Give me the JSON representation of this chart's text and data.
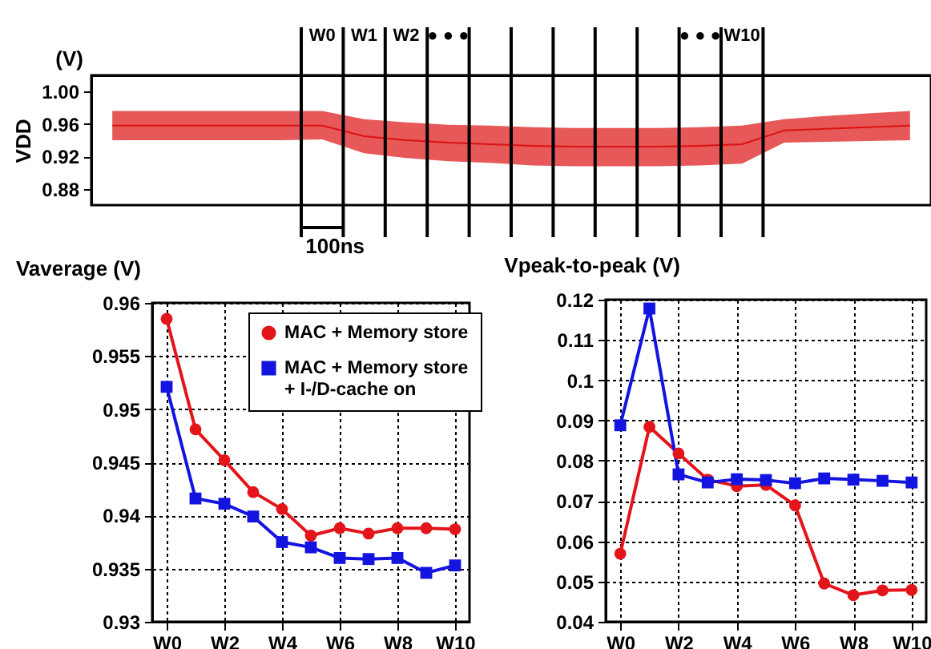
{
  "chart_data": [
    {
      "type": "line",
      "ylabel": "VDD",
      "annotations": [
        "(V)",
        "100ns"
      ],
      "categories": [
        null,
        null,
        null,
        null,
        null,
        "W0",
        "W1",
        "W2",
        "● ● ●",
        null,
        null,
        null,
        null,
        null,
        "● ● ●",
        "W10",
        null,
        null,
        null,
        null
      ],
      "series": [
        {
          "color": "#dd1111",
          "values": [
            0.958,
            0.958,
            0.958,
            0.958,
            0.958,
            0.958,
            0.945,
            0.94,
            0.937,
            0.935,
            0.933,
            0.932,
            0.932,
            0.932,
            0.933,
            0.935,
            0.952,
            0.954,
            0.956,
            0.958
          ],
          "lower": [
            0.94,
            0.94,
            0.94,
            0.94,
            0.94,
            0.941,
            0.924,
            0.918,
            0.914,
            0.912,
            0.909,
            0.908,
            0.908,
            0.908,
            0.909,
            0.911,
            0.937,
            0.938,
            0.939,
            0.94
          ],
          "upper": [
            0.976,
            0.976,
            0.976,
            0.976,
            0.976,
            0.976,
            0.966,
            0.962,
            0.959,
            0.958,
            0.956,
            0.955,
            0.955,
            0.955,
            0.956,
            0.958,
            0.966,
            0.97,
            0.973,
            0.976
          ]
        }
      ],
      "ylim": [
        0.86,
        1.02
      ],
      "yticks": [
        0.88,
        0.92,
        0.96,
        {
          "value": 1,
          "label": "1.00"
        }
      ],
      "grid": false
    },
    {
      "type": "line",
      "title": "Vaverage (V)",
      "categories": [
        "W0",
        null,
        "W2",
        null,
        "W4",
        null,
        "W6",
        null,
        "W8",
        null,
        "W10"
      ],
      "series": [
        {
          "name": "MAC + Memory store",
          "color": "#e3141a",
          "marker": "circle",
          "values": [
            0.9585,
            0.9481,
            0.9452,
            0.9422,
            0.9406,
            0.9381,
            0.9388,
            0.9383,
            0.9388,
            0.9388,
            0.9387
          ]
        },
        {
          "name": "MAC + Memory store + I-/D-cache on",
          "color": "#1414e0",
          "marker": "square",
          "values": [
            0.9521,
            0.9416,
            0.9411,
            0.9399,
            0.9375,
            0.937,
            0.936,
            0.9359,
            0.936,
            0.9346,
            0.9353
          ]
        }
      ],
      "ylim": [
        0.93,
        0.96
      ],
      "yticks": [
        0.93,
        0.935,
        0.94,
        0.945,
        0.95,
        0.955,
        0.96
      ],
      "grid": true,
      "legend": "top right"
    },
    {
      "type": "line",
      "title": "Vpeak-to-peak (V)",
      "categories": [
        "W0",
        null,
        "W2",
        null,
        "W4",
        null,
        "W6",
        null,
        "W8",
        null,
        "W10"
      ],
      "series": [
        {
          "color": "#e3141a",
          "marker": "circle",
          "values": [
            0.0569,
            0.0884,
            0.0818,
            0.0753,
            0.0737,
            0.074,
            0.0689,
            0.0495,
            0.0466,
            0.0478,
            0.0479
          ]
        },
        {
          "color": "#1414e0",
          "marker": "square",
          "values": [
            0.0888,
            0.1178,
            0.0766,
            0.0746,
            0.0754,
            0.0752,
            0.0744,
            0.0756,
            0.0753,
            0.075,
            0.0746
          ]
        }
      ],
      "ylim": [
        0.04,
        0.12
      ],
      "yticks": [
        0.04,
        0.05,
        0.06,
        0.07,
        0.08,
        0.09,
        0.1,
        0.11,
        0.12
      ],
      "grid": true
    }
  ]
}
